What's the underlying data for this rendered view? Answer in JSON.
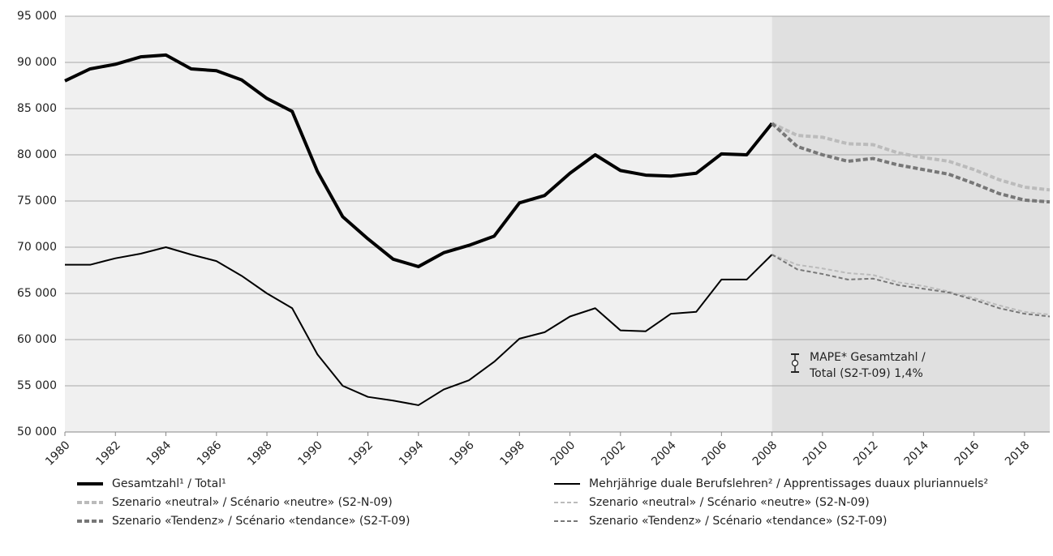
{
  "chart_data": {
    "type": "line",
    "x": [
      1980,
      1981,
      1982,
      1983,
      1984,
      1985,
      1986,
      1987,
      1988,
      1989,
      1990,
      1991,
      1992,
      1993,
      1994,
      1995,
      1996,
      1997,
      1998,
      1999,
      2000,
      2001,
      2002,
      2003,
      2004,
      2005,
      2006,
      2007,
      2008,
      2009,
      2010,
      2011,
      2012,
      2013,
      2014,
      2015,
      2016,
      2017,
      2018,
      2019
    ],
    "forecast_from": 2008,
    "series": [
      {
        "name": "Gesamtzahl¹ / Total¹",
        "color": "#000000",
        "width": 4,
        "dashed": false,
        "values": [
          88000,
          89300,
          89800,
          90600,
          90800,
          89300,
          89100,
          88100,
          86100,
          84700,
          78200,
          73300,
          70900,
          68700,
          67900,
          69400,
          70200,
          71200,
          74800,
          75600,
          78000,
          80000,
          78300,
          77800,
          77700,
          78000,
          80100,
          80000,
          83400,
          null,
          null,
          null,
          null,
          null,
          null,
          null,
          null,
          null,
          null,
          null
        ]
      },
      {
        "name": "Mehrjährige duale Berufslehren² / Apprentissages duaux pluriannuels²",
        "color": "#000000",
        "width": 2,
        "dashed": false,
        "values": [
          68100,
          68100,
          68800,
          69300,
          70000,
          69200,
          68500,
          66900,
          65000,
          63400,
          58400,
          55000,
          53800,
          53400,
          52900,
          54600,
          55600,
          57600,
          60100,
          60800,
          62500,
          63400,
          61000,
          60900,
          62800,
          63000,
          66500,
          66500,
          69200,
          null,
          null,
          null,
          null,
          null,
          null,
          null,
          null,
          null,
          null,
          null
        ]
      },
      {
        "name": "Szenario «neutral» / Scénario «neutre» (S2-N-09)",
        "color": "#bbbbbb",
        "width": 4,
        "dashed": true,
        "values": [
          null,
          null,
          null,
          null,
          null,
          null,
          null,
          null,
          null,
          null,
          null,
          null,
          null,
          null,
          null,
          null,
          null,
          null,
          null,
          null,
          null,
          null,
          null,
          null,
          null,
          null,
          null,
          null,
          83400,
          82100,
          81900,
          81200,
          81100,
          80200,
          79700,
          79300,
          78400,
          77300,
          76500,
          76200
        ]
      },
      {
        "name": "Szenario «neutral» / Scénario «neutre» (S2-N-09)",
        "color": "#bbbbbb",
        "width": 2,
        "dashed": true,
        "values": [
          null,
          null,
          null,
          null,
          null,
          null,
          null,
          null,
          null,
          null,
          null,
          null,
          null,
          null,
          null,
          null,
          null,
          null,
          null,
          null,
          null,
          null,
          null,
          null,
          null,
          null,
          null,
          null,
          69200,
          68100,
          67700,
          67200,
          67000,
          66200,
          65800,
          65200,
          64500,
          63700,
          63000,
          62700
        ]
      },
      {
        "name": "Szenario «Tendenz» / Scénario «tendance» (S2-T-09)",
        "color": "#777777",
        "width": 4,
        "dashed": true,
        "values": [
          null,
          null,
          null,
          null,
          null,
          null,
          null,
          null,
          null,
          null,
          null,
          null,
          null,
          null,
          null,
          null,
          null,
          null,
          null,
          null,
          null,
          null,
          null,
          null,
          null,
          null,
          null,
          null,
          83400,
          80900,
          80000,
          79300,
          79600,
          78900,
          78400,
          77900,
          76900,
          75800,
          75100,
          74900
        ]
      },
      {
        "name": "Szenario «Tendenz» / Scénario «tendance» (S2-T-09)",
        "color": "#777777",
        "width": 2,
        "dashed": true,
        "values": [
          null,
          null,
          null,
          null,
          null,
          null,
          null,
          null,
          null,
          null,
          null,
          null,
          null,
          null,
          null,
          null,
          null,
          null,
          null,
          null,
          null,
          null,
          null,
          null,
          null,
          null,
          null,
          null,
          69200,
          67600,
          67100,
          66500,
          66600,
          65900,
          65500,
          65100,
          64300,
          63400,
          62800,
          62500
        ]
      }
    ],
    "xlim": [
      1980,
      2019
    ],
    "xticks": [
      1980,
      1982,
      1984,
      1986,
      1988,
      1990,
      1992,
      1994,
      1996,
      1998,
      2000,
      2002,
      2004,
      2006,
      2008,
      2010,
      2012,
      2014,
      2016,
      2018
    ],
    "ylim": [
      50000,
      95000
    ],
    "yticks": [
      {
        "value": 50000,
        "label": "50 000"
      },
      {
        "value": 55000,
        "label": "55 000"
      },
      {
        "value": 60000,
        "label": "60 000"
      },
      {
        "value": 65000,
        "label": "65 000"
      },
      {
        "value": 70000,
        "label": "70 000"
      },
      {
        "value": 75000,
        "label": "75 000"
      },
      {
        "value": 80000,
        "label": "80 000"
      },
      {
        "value": 85000,
        "label": "85 000"
      },
      {
        "value": 90000,
        "label": "90 000"
      },
      {
        "value": 95000,
        "label": "95 000"
      }
    ],
    "grid": true,
    "annotation": [
      "MAPE* Gesamtzahl /",
      "Total (S2-T-09) 1,4%"
    ]
  }
}
